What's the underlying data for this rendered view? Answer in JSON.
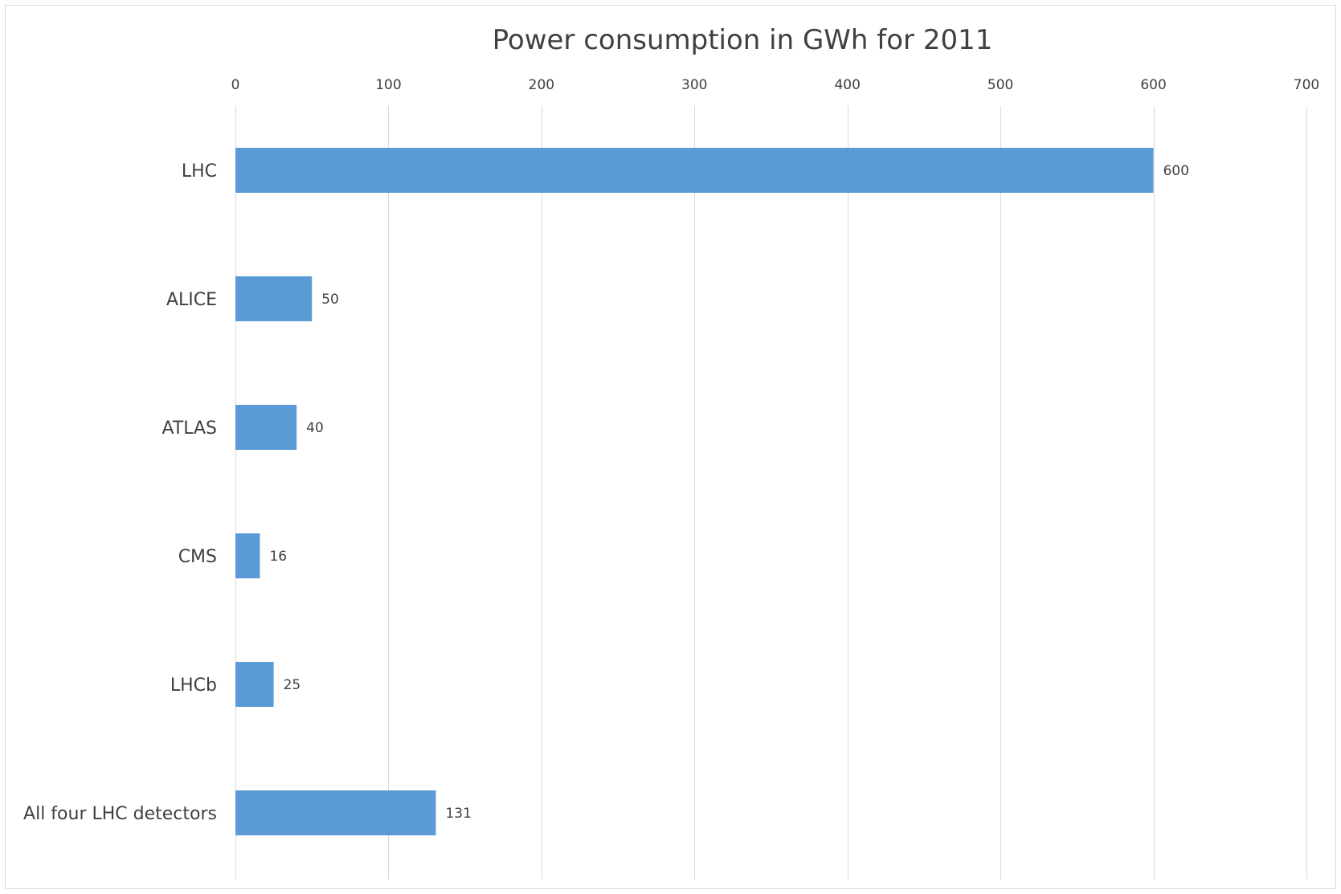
{
  "chart_data": {
    "type": "bar",
    "orientation": "horizontal",
    "title": "Power consumption in GWh for 2011",
    "xlabel": "",
    "ylabel": "",
    "categories": [
      "LHC",
      "ALICE",
      "ATLAS",
      "CMS",
      "LHCb",
      "All four LHC detectors"
    ],
    "values": [
      600,
      50,
      40,
      16,
      25,
      131
    ],
    "value_labels": [
      "600",
      "50",
      "40",
      "16",
      "25",
      "131"
    ],
    "xlim": [
      0,
      700
    ],
    "ticks": [
      0,
      100,
      200,
      300,
      400,
      500,
      600,
      700
    ],
    "tick_labels": [
      "0",
      "100",
      "200",
      "300",
      "400",
      "500",
      "600",
      "700"
    ],
    "axis_position": "top",
    "grid": true,
    "legend": "none",
    "bar_color": "#5b9bd5",
    "grid_color": "#d9d9d9",
    "text_color": "#404040"
  }
}
